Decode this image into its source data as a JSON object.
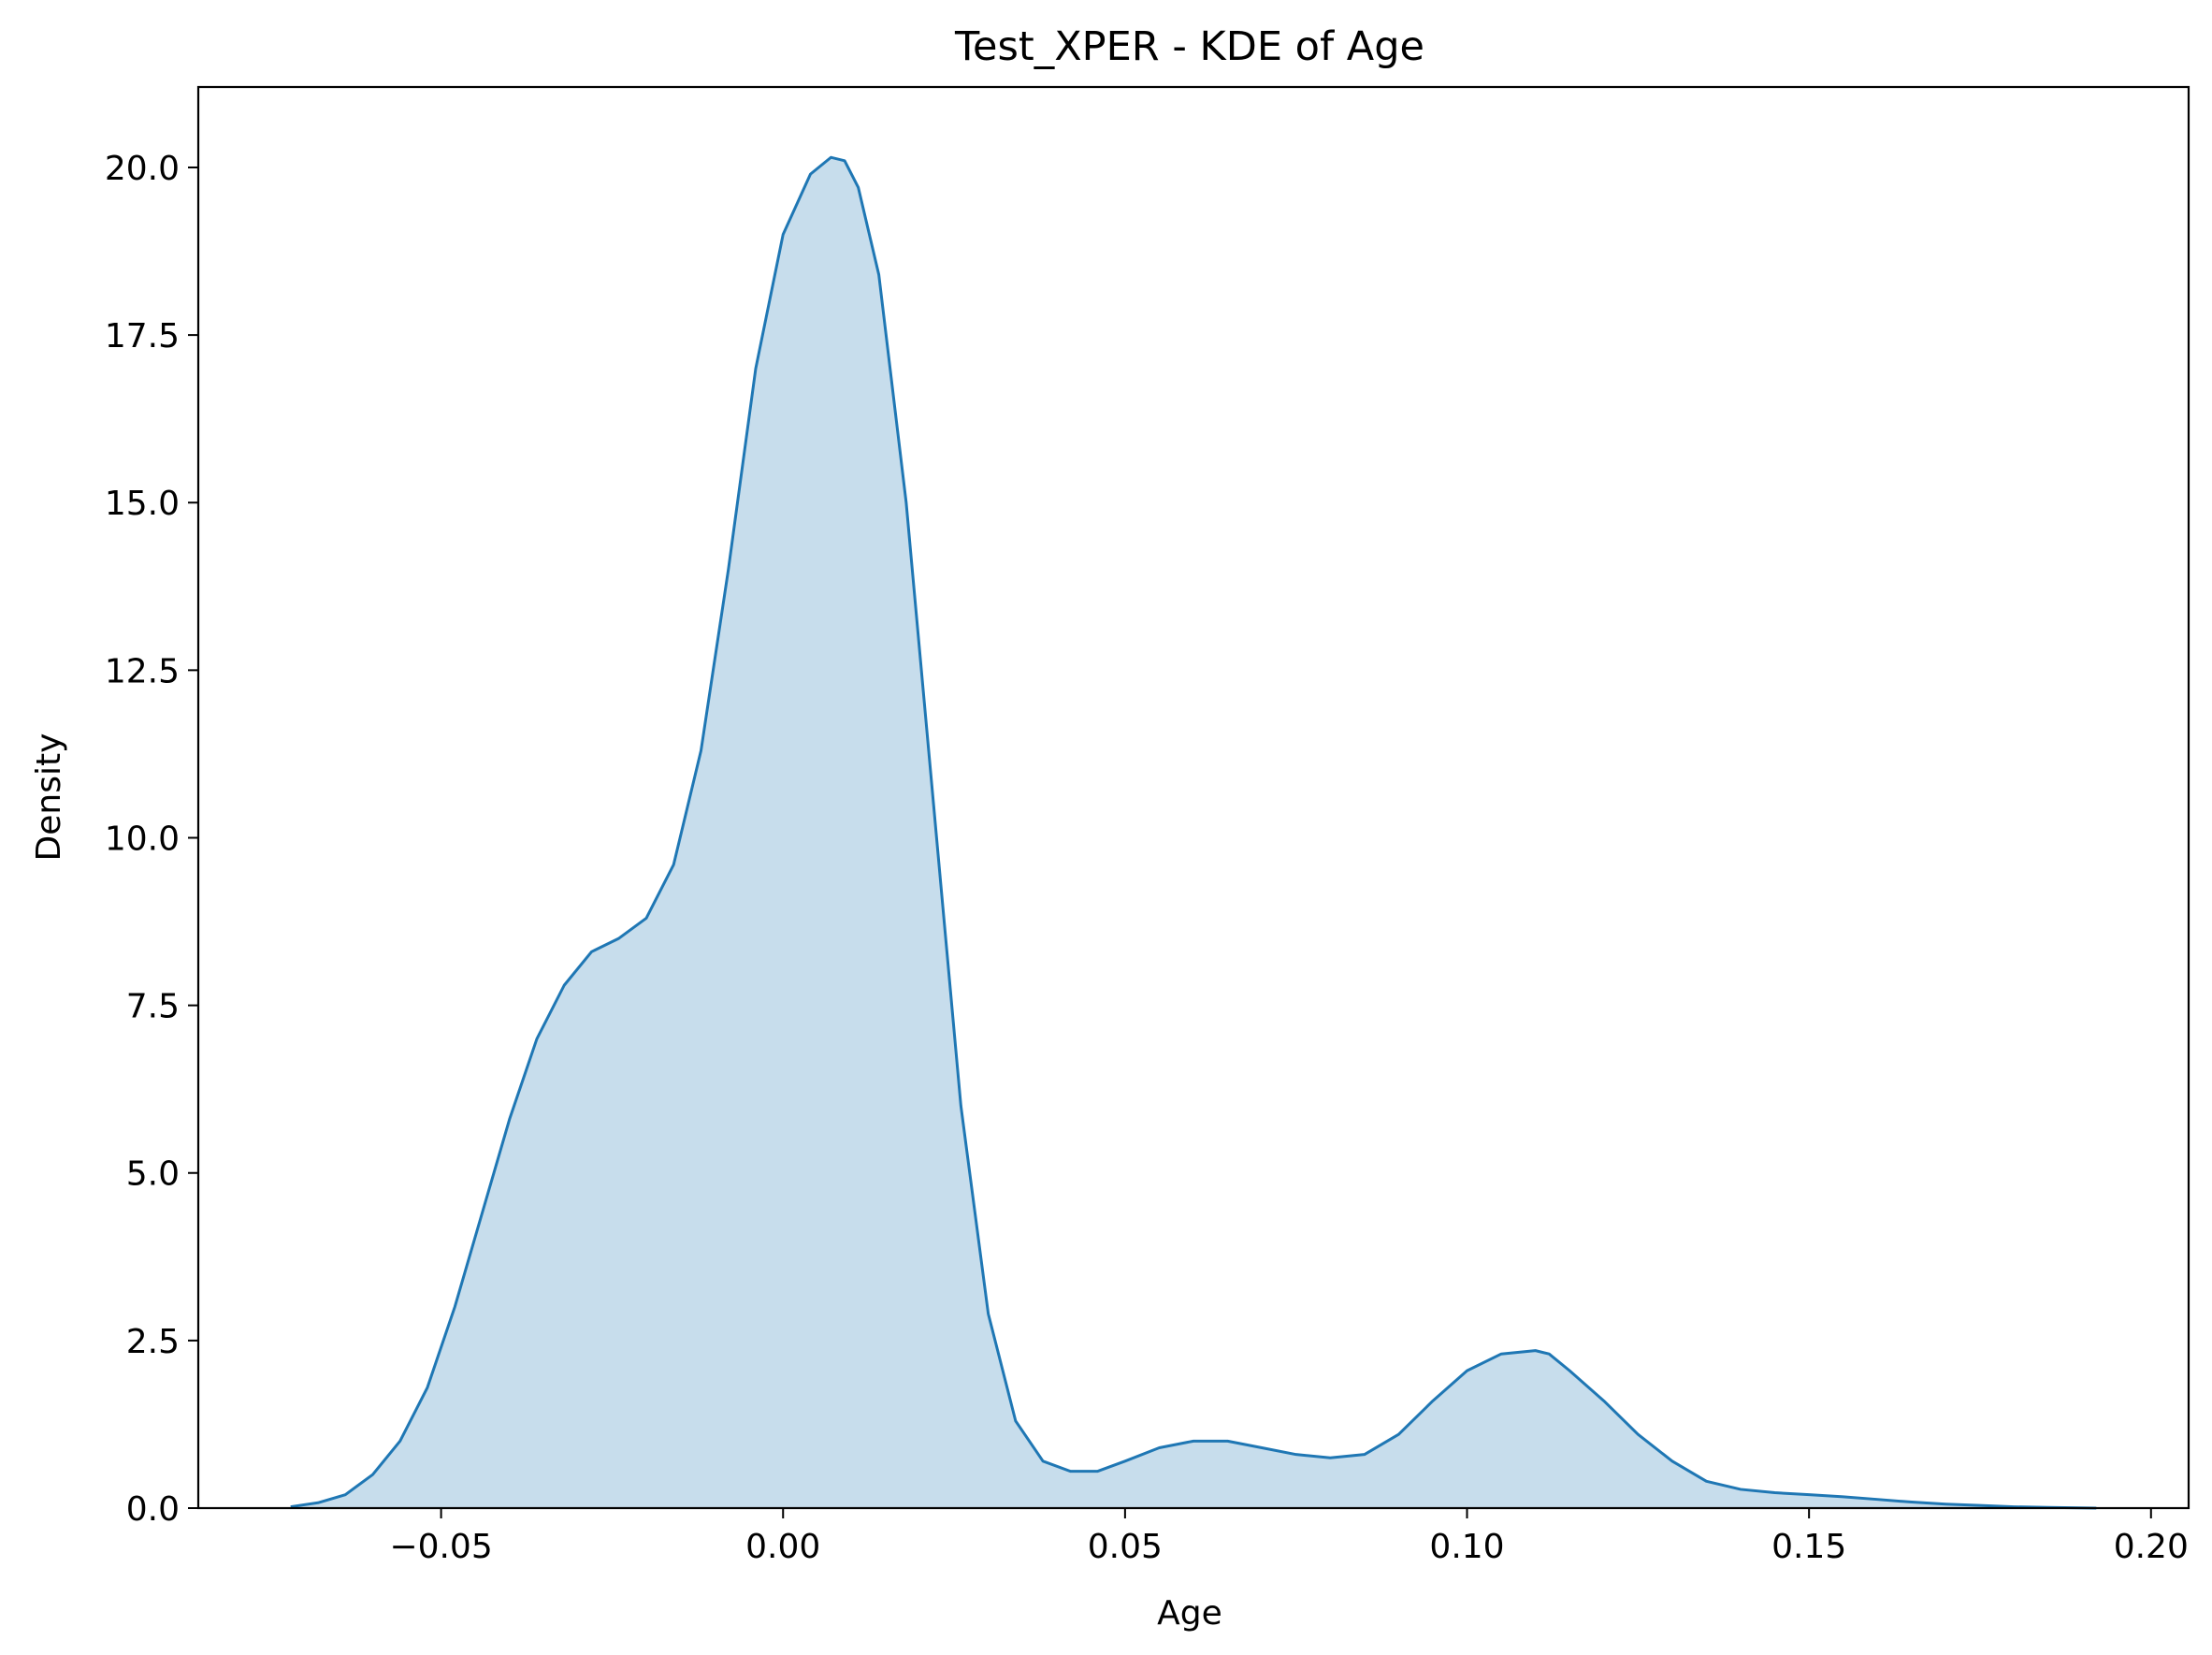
{
  "chart_data": {
    "type": "area",
    "title": "Test_XPER - KDE of Age",
    "xlabel": "Age",
    "ylabel": "Density",
    "xlim": [
      -0.0855,
      0.2055
    ],
    "ylim": [
      0.0,
      21.2
    ],
    "grid": false,
    "x_ticks": [
      -0.05,
      0.0,
      0.05,
      0.1,
      0.15,
      0.2
    ],
    "x_tick_labels": [
      "−0.05",
      "0.00",
      "0.05",
      "0.10",
      "0.15",
      "0.20"
    ],
    "y_ticks": [
      0.0,
      2.5,
      5.0,
      7.5,
      10.0,
      12.5,
      15.0,
      17.5,
      20.0
    ],
    "y_tick_labels": [
      "0.0",
      "2.5",
      "5.0",
      "7.5",
      "10.0",
      "12.5",
      "15.0",
      "17.5",
      "20.0"
    ],
    "colors": {
      "line": "#1f77b4",
      "fill": "#1f77b4",
      "fill_opacity": 0.25
    },
    "series": [
      {
        "x": [
          -0.072,
          -0.068,
          -0.064,
          -0.06,
          -0.056,
          -0.052,
          -0.048,
          -0.044,
          -0.04,
          -0.036,
          -0.032,
          -0.028,
          -0.024,
          -0.02,
          -0.016,
          -0.012,
          -0.008,
          -0.004,
          0.0,
          0.004,
          0.007,
          0.009,
          0.011,
          0.014,
          0.018,
          0.022,
          0.026,
          0.03,
          0.034,
          0.038,
          0.042,
          0.046,
          0.05,
          0.055,
          0.06,
          0.065,
          0.07,
          0.075,
          0.08,
          0.085,
          0.09,
          0.095,
          0.1,
          0.105,
          0.11,
          0.112,
          0.115,
          0.12,
          0.125,
          0.13,
          0.135,
          0.14,
          0.145,
          0.15,
          0.155,
          0.16,
          0.165,
          0.17,
          0.175,
          0.18,
          0.185,
          0.192
        ],
        "y": [
          0.02,
          0.08,
          0.2,
          0.5,
          1.0,
          1.8,
          3.0,
          4.4,
          5.8,
          7.0,
          7.8,
          8.3,
          8.5,
          8.8,
          9.6,
          11.3,
          14.0,
          17.0,
          19.0,
          19.9,
          20.15,
          20.1,
          19.7,
          18.4,
          15.0,
          10.5,
          6.0,
          2.9,
          1.3,
          0.7,
          0.55,
          0.55,
          0.7,
          0.9,
          1.0,
          1.0,
          0.9,
          0.8,
          0.75,
          0.8,
          1.1,
          1.6,
          2.05,
          2.3,
          2.35,
          2.3,
          2.05,
          1.6,
          1.1,
          0.7,
          0.4,
          0.28,
          0.23,
          0.2,
          0.17,
          0.13,
          0.09,
          0.06,
          0.04,
          0.02,
          0.01,
          0.0
        ]
      }
    ]
  }
}
